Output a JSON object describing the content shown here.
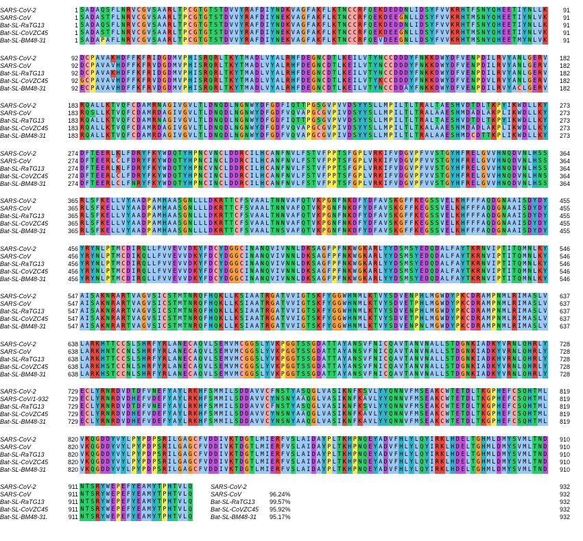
{
  "sequence_names": [
    "SARS-CoV-2",
    "SARS-CoV",
    "Bat-SL-RaTG13",
    "Bat-SL-CoVZC45",
    "Bat-SL-BM48-31"
  ],
  "colors": {
    "A": "#9cc9f4",
    "V": "#9cc9f4",
    "I": "#9cc9f4",
    "L": "#9cc9f4",
    "M": "#9cc9f4",
    "F": "#9cc9f4",
    "W": "#9cc9f4",
    "C": "#f5a3a3",
    "K": "#e24a3f",
    "R": "#e24a3f",
    "D": "#bb55d6",
    "E": "#bb55d6",
    "N": "#2dcc6c",
    "Q": "#2dcc6c",
    "S": "#2dcc6c",
    "T": "#2dcc6c",
    "G": "#f2a040",
    "P": "#f5ec5a",
    "H": "#2fb5c9",
    "Y": "#2fb5c9",
    "other": "#ffffff"
  },
  "blocks": [
    {
      "start": 1,
      "end": 91,
      "rows": [
        {
          "name": "SARS-CoV-2",
          "seq": "SADAQSFLNRVCGVSAARLTPCGTGTSTDVVYRAFDIYNDKVAGFAKFLKTNCCRFQEKDEDDNLIDSYFVVKRHTFSNYQHEETIYNLLK"
        },
        {
          "name": "SARS-CoV",
          "seq": "SADASTFLNRVCGVSAARLTPCGTGTSTDVVYRAFDIYNEKVAGFAKFLKTNCCRFQEKDEEGNLLDSYFVVKRHTMSNYQHEETIYNLVK"
        },
        {
          "name": "Bat-SL-RaTG13",
          "seq": "SADAQSFLNRVCGVSAARLTPCGTGTSTDVVYRAFDIYNDKVAGFAKFLKTNCCRFQEKDEDDNLIDSYFVVKRHTFSNYQHEETIYNLLK"
        },
        {
          "name": "Bat-SL-CoVZC45",
          "seq": "SADASTFLNRVCGVSAARLTPCGTGTSTDVVYRAFDIYNEKVAGFAKFLKTNCCRFQEKDEEGNLLDSYFVVKRHTMSNYQHEETIYNLVK"
        },
        {
          "name": "Bat-SL-BM48-31",
          "seq": "SADAPAFLNRVCGVSAARLTPCGTGTSTDVVYRAFDIYNEKVAGFAKFLKTNCCRFQEVDEEGNLLDSYFVVKRHTMSNYQHEETMYNLVK"
        }
      ]
    },
    {
      "start": 92,
      "end": 182,
      "rows": [
        {
          "name": "SARS-CoV-2",
          "seq": "DCPAVAKHDFFKFRIDGDMVPHISRQRLTKYTMADLVYALRHFDEGNCDTLKEILVTYNCCDDDYFNKKDWYDFVENPDILRVYANLGERV"
        },
        {
          "name": "SARS-CoV",
          "seq": "DCPAVAVHDFFKFRVDGDMVPHISRQRLTKYTMADLVYALRHFDEGNCDTLKEILVTYNCCDDDYFNKKDWYDFVENPDILRVYANLGERV"
        },
        {
          "name": "Bat-SL-RaTG13",
          "seq": "DCPAVAKHDFFKFRIDGDMVPHISRQRLTKYTMADLVYALRHFDEGNCDTLKEILVTYNCCDDDYFNKKDWYDFVENPDILRVYANLGERV"
        },
        {
          "name": "Bat-SL-CoVZC45",
          "seq": "GCPAVAVHDFFKFRVDGDMVPHISRQRLTKYTMADLVYALRHFDEGNCDTLKEILVTYKCCDDDYFNKKDWYDFVENPDVLRVYANLGERV"
        },
        {
          "name": "Bat-SL-BM48-31",
          "seq": "ECPAVAVHDFFKFRVDGDMVPHISRQRLTKYTMADLVYALRHFDEGNCDTLKEILVTYNCCDDAYFNKKDWYDFVENPDILRVYACLGERV"
        }
      ]
    },
    {
      "start": 183,
      "end": 273,
      "rows": [
        {
          "name": "SARS-CoV-2",
          "seq": "RQALLKTVQFCDAMRNAGIVGVLTLDNQDLNGNWYDFGDFIQTTPGSGVPVVDSYYSLLMPILTLTRALTAESHVDTDLTKPYIKWDLLKY"
        },
        {
          "name": "SARS-CoV",
          "seq": "RQSLLKTVQFCDAMRDAGIVGVLTLDNQDLNGNWYDFGDFVQVAPGCGVPIVDSYYSLLMPILTLTRALAAESHMDADLAKPLIKWDLLKY"
        },
        {
          "name": "Bat-SL-RaTG13",
          "seq": "RQALLKTVQFCDAMRNAGIVGVLTLDNQDLNGNWYDFGDFIQTTPGSGVPVVDSYYSLLMPILTLTRALTAESHVDTDLTKPYIKWDLLKY"
        },
        {
          "name": "Bat-SL-CoVZC45",
          "seq": "RQALLKTVQFCDAMRDAGIVGVLTLDNQDLNGNWYDFGDFVQVAPGCGVPIVDSYYSLLMPILTLTKALAAESHMDADLAKPLIKWDLLKY"
        },
        {
          "name": "Bat-SL-BM48-31",
          "seq": "RQALLKTVQFCDAMRDAGIVGVLTLDNQDLNGNWYDFGDFVQVAPGCGVPIVDSYYSLLMPILTLTRALAAESHMDCDTTKPLIKWDLLKY"
        }
      ]
    },
    {
      "start": 274,
      "end": 364,
      "rows": [
        {
          "name": "SARS-CoV-2",
          "seq": "DFTEERLKLFDRYFKYWDQTYHPNCVNCLDDRCILHCANFNVLFSTVFPPTSFGPLVRKIFVDGVPFVVSTGYHFRELGVVHNQDVNLHSS"
        },
        {
          "name": "SARS-CoV",
          "seq": "DFTEERLCLFDRYFKYWDQTYHPNCINCLDDRCILHCANFNVLFSTVFPPTSFGPLVRKIFVDGVPFVVSTGYHFRELGVVHNQDVNLHSS"
        },
        {
          "name": "Bat-SL-RaTG13",
          "seq": "DFTEERLKLFDRYFKYWDQTYHPNCVNCLDDRCILHCANFNVLFSTVFPPTSFGPLVRKIFVDGVPFVVSTGYHFRELGVVHNQDVNLHSS"
        },
        {
          "name": "Bat-SL-CoVZC45",
          "seq": "DFTEERLCLFDRYFKYWDQTYHPNCINCLDDRCILHCANFNVLFSTVFPPTSFGPLVRKIFVDGVPFVVSTGYHFRELGVVHNQDVNLHNS"
        },
        {
          "name": "Bat-SL-BM48-31",
          "seq": "DFTEERLCLFNRYFKYWDQTYHPNCINCLDDRCILHCANFNVLFSTVFPPTSFGPLVRKIFVDGVPFVVSTGYHFRELGVVHNQDVNLHSS"
        }
      ]
    },
    {
      "start": 365,
      "end": 455,
      "rows": [
        {
          "name": "SARS-CoV-2",
          "seq": "RLSFKELLVYAADPAMHAASGNLLLDKRTTCFSVAALTNNVAFQTVKPGNFNKDFYDFAVSKGFFKEGSSVELKHFFFAQDGNAAISDYDY"
        },
        {
          "name": "SARS-CoV",
          "seq": "RLSFKELLVYAADPAMHAASGNLLLDKRTTCFSVAALTNNVAFQTVKPGNFNKDFYDFAVSKGFFKEGSSVELKHFFFAQDGNAAISDYDY"
        },
        {
          "name": "Bat-SL-RaTG13",
          "seq": "RLSFKELLVYAADPAMHAASGNLLLDKRTTCFSVAALTNNVAFQTVKPGNFNKDFYDFAVSKGFFKEGSSVELKHFFFAQDGNAAISDYDY"
        },
        {
          "name": "Bat-SL-CoVZC45",
          "seq": "RLSFKELLVYAADPAMHAASGNLLLDKRTTCFSVAALTNNVAFQTVKPGNFNKDFYDFAVSKGFFKEGSSVELKHFFFAQDGNAAISDYDY"
        },
        {
          "name": "Bat-SL-BM48-31",
          "seq": "RLSFKELLVYAADPAMHAASGNLLLDKRTTCFSVAALTNSVAFQTVKPGNFNKDFYDFAVSKGFFKEGSSVELKHFFFAQDGNAAISDYDY"
        }
      ]
    },
    {
      "start": 456,
      "end": 546,
      "rows": [
        {
          "name": "SARS-CoV-2",
          "seq": "YRYNLPTMCDIRQLLFVVEVVDKYFDCYDGGCINANQVIVNNLDKSAGFPFNKWGKARLYYDSMSYEDQDALFAYTKRNVIPTITQMNLKY"
        },
        {
          "name": "SARS-CoV",
          "seq": "YRYNLPTMCDIKQLLFVVEVVDKYFDCYDGGCINANQVIVNNLDKSAGFPFNKWGKARLYYDSMSYEDQDALFAYTKRNVIPTITQMNLKY"
        },
        {
          "name": "Bat-SL-RaTG13",
          "seq": "YRYNLPTMCDIRQLLFVVEVVDKYFDCYDGGCINANQVIVNNLDKSAGFPFNKWGKARLYYDSMSYEDQDALFAYTKRNVIPTITQMNLKY"
        },
        {
          "name": "Bat-SL-CoVZC45",
          "seq": "YRYNLPTMCDIRQLLFVVEVVDKYFDCYDGGCINANQVIVNNLDKSAGFPFNKWGKARLYYDSMSYEDQDALFAYTKRNVIPTITQMNLKY"
        },
        {
          "name": "Bat-SL-BM48-31",
          "seq": "YRYNLPTMCDIRQLLFVVEVVDKYFDCYDGGCINANQVIVNNLDKSAGFPFNKWGKARLYYDSMSYEDQDALFAYTKRNVIPTITQMNLKY"
        }
      ]
    },
    {
      "start": 547,
      "end": 637,
      "rows": [
        {
          "name": "SARS-CoV-2",
          "seq": "AISAKNRARTVAGVSICSTMTNRQFHQKLLKSIAATRGATVVIGTSKFYGGWHNMLKTVYSDVENPHLMGWDYPKCDRAMPNMLRIMASLV"
        },
        {
          "name": "SARS-CoV",
          "seq": "AISAKNRARTVAGVSICSTMTNRQFHQKLLKSIAATRGATVVIGTSKFYGGWHNMLKTVYSDVETPHLMGWDYPKCDRAMPNMLRIMASLV"
        },
        {
          "name": "Bat-SL-RaTG13",
          "seq": "AISAKNRARTVAGVSICSTMTNRQFHQKLLKSIAATRGATVVIGTSKFYGGWHNMLKTVYSDVENPHLMGWDYPKCDRAMPNMLRIMASLV"
        },
        {
          "name": "Bat-SL-CoVZC45",
          "seq": "AISAKNRARTVAGVSICSTMTNRQFHQKLLKSIAATRGATVVIGTSKFYGGWHNMLKTVYSDVETPHLMGWDYPKCDRAMPNMLRIMASLV"
        },
        {
          "name": "Bat-SL-BM48-31",
          "seq": "AISAKNRARTVAGVSICSTMTNRQFHQKLLKSIAATRGATVVIGTSKFYGGWHNMLKTVYSDVENPNLMGWDYPKCDRAMPNMLRIMASLV"
        }
      ]
    },
    {
      "start": 638,
      "end": 728,
      "rows": [
        {
          "name": "SARS-CoV-2",
          "seq": "LARKHTTCCSLSHRFYRLANECAQVLSEMVMCGGSLYVKPGGTSSGDATTAYANSVFNICQAVTANVNALLSTDGNKIADKYVRNLQHRLY"
        },
        {
          "name": "SARS-CoV",
          "seq": "LARKHNTCCNLSHRFYRLANECAQVLSEMVMCGGSLYVKPGGTSSGDATTAYANSVFNICQAVTANVNALLSTDGNKIADKYVRNLQHRLY"
        },
        {
          "name": "Bat-SL-RaTG13",
          "seq": "LARKHTTCCSLSHRFYRLANECAQVLSEMVMCGGSLYVKPGGTSSGDATTAYANSVFNICQAVTANVNALLSTDGNKIADKHVRNLQHRLY"
        },
        {
          "name": "Bat-SL-CoVZC45",
          "seq": "LARKHSTCCNLSHRFYRLANECAQVLSEMVMCGGSLYVKPGGTSSGDATTAYANSVFNICQAVTANVNALLSTDGNKIADKYVRNLQHRLY"
        },
        {
          "name": "Bat-SL-BM48-31",
          "seq": "LARKHSTCCNLSHRFYRLANECAQVLSEMVMCGGSLYVKPGGTSSGDATTAYANSVFNICQAVTANVNALLSTDGNKIADKYVRNLQHRLY"
        }
      ]
    },
    {
      "start": 729,
      "end": 819,
      "rows": [
        {
          "name": "SARS-CoV-2",
          "seq": "ECLYRNRDVDTDFVNEFYAYLRKHFSMMILSDDAVVCFNSTYASQGLVASIKNFKSVLYYQNNVFMSEAKCWTETDLTKGPHEFCSQHTML"
        },
        {
          "name": "SARS-CoV/1-932",
          "seq": "ECLYRNRDVDHEFVDEFYAYLRKHFSMMILSDDAVVCYNSNYAAQGLVASIKNFKAVLYYQNNVFMSEAKCWTETDLTKGPHEFCSQHTML"
        },
        {
          "name": "Bat-SL-RaTG13",
          "seq": "ECLYRNRDVDTDFVNEFYAYLRKHFSMMILSDDAVVCFNSTYASQGLVASIKNFKSVLYYQNNVFMSEAKCWTETDLTKGPHEFCSQHTML"
        },
        {
          "name": "Bat-SL-CoVZC45",
          "seq": "ECLYRNRDVDHEFVDEFYAYLRKHFSMMILSDDAVVCYNSNYAAQGLVASIKNFKAVLYYQNNVFMSEAKCWTETDLTKGPHEFCSQHTML"
        },
        {
          "name": "Bat-SL-BM48-31",
          "seq": "ECLYRNRDVDHEFVDEFYAYLRKHFSMMILSDDAVVCYNSNYAAQGLVASIKNFKAVLYYQNNVFMSEAKCWTETDLTKGPHEFCSQHTML"
        }
      ]
    },
    {
      "start": 820,
      "end": 910,
      "rows": [
        {
          "name": "SARS-CoV-2",
          "seq": "VKQGDDYVYLPYPDPSRILGAGCFVDDIVKTDGTLMIERFVSLAIDAYPLTKHPNQEYADVFHLYLQYIRKLHDELTGHMLDMYSVMLTND"
        },
        {
          "name": "SARS-CoV",
          "seq": "VKQGDDYVYLPYPDPSRILGAGCFVDDIVKTDGTLMIERFVSLAIDAYPLTKHPNQEYADVFHLYLQYIRKLHDELTGHMLDMYSVMLTND"
        },
        {
          "name": "Bat-SL-RaTG13",
          "seq": "VKQGDDYVYLPYPDPSRILGAGCFVDDIVKTDGTLMIERFVSLAIDAYPLTKHPNQEYADVFHLYLQYIRKLHDELTGHMLDMYSVMLTND"
        },
        {
          "name": "Bat-SL-CoVZC45",
          "seq": "VKQGDDYVYLPYPDPSRILGAGCFVDDIVKTDGTLMIERFVSLAIDAYPLTKHPNQEYADVFHLYLQYIRKLHDELTGHMLDMYSVMLTND"
        },
        {
          "name": "Bat-SL-BM48-31",
          "seq": "VKQGDDYVYLPYPDPSRILGAGCFVDDIVKTDGTLMIERFVSLAIDAYPLTKHPNQEYADVFHLYLQYIRKLHDELTGHMLDMYSVMLTND"
        }
      ]
    },
    {
      "start": 911,
      "end": 932,
      "rows": [
        {
          "name": "SARS-CoV-2",
          "seq": "NTSRYWEPEFYEAMYTPHTVLQ"
        },
        {
          "name": "SARS-CoV",
          "seq": "NTSRYWEPEFYEAMYTPHTVLQ"
        },
        {
          "name": "Bat-SL-RaTG13",
          "seq": "NTSRYWEPEFYEAMYTPHTVLQ"
        },
        {
          "name": "Bat-SL-CoVZC45",
          "seq": "NTSRYWEPEFYEAMYTPHTVLQ"
        },
        {
          "name": "Bat-SL-BM48-31.",
          "seq": "NTSRYWEPEFYEAMYTPHTVLQ"
        }
      ]
    }
  ],
  "identity": [
    {
      "name": "SARS-CoV-2",
      "value": ""
    },
    {
      "name": "SARS-CoV",
      "value": "96.24%"
    },
    {
      "name": "Bat-SL-RaTG13",
      "value": "99.57%"
    },
    {
      "name": "Bat-SL-CoVZC45",
      "value": "95.92%"
    },
    {
      "name": "Bat-SL-BM48-31",
      "value": "95.17%"
    }
  ]
}
